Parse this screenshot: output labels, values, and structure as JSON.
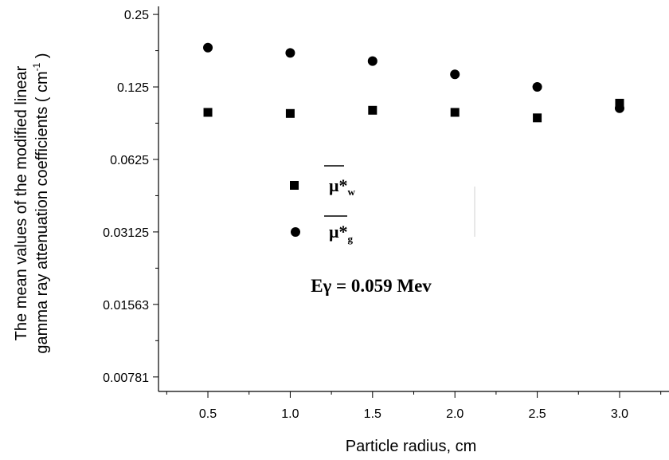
{
  "chart_data": {
    "type": "scatter",
    "xlabel": "Particle radius, cm",
    "ylabel_line1": "The mean values of the modified linear",
    "ylabel_line2": "gamma ray attenuation coefficients ( cm",
    "ylabel_sup": "-1",
    "ylabel_close": " )",
    "y_scale": "log2",
    "xlim": [
      0.2,
      3.3
    ],
    "ylim": [
      0.0068,
      0.27
    ],
    "x_ticks": [
      0.5,
      1.0,
      1.5,
      2.0,
      2.5,
      3.0
    ],
    "x_tick_labels": [
      "0.5",
      "1.0",
      "1.5",
      "2.0",
      "2.5",
      "3.0"
    ],
    "y_ticks": [
      0.25,
      0.125,
      0.0625,
      0.03125,
      0.01563,
      0.00781
    ],
    "y_tick_labels": [
      "0.25",
      "0.125",
      "0.0625",
      "0.03125",
      "0.01563",
      "0.00781"
    ],
    "series": [
      {
        "marker": "square",
        "legend_main": "μ*",
        "legend_sub": "w",
        "x": [
          0.5,
          1.0,
          1.5,
          2.0,
          2.5,
          3.0
        ],
        "y": [
          0.098,
          0.097,
          0.1,
          0.098,
          0.093,
          0.107
        ]
      },
      {
        "marker": "circle",
        "legend_main": "μ*",
        "legend_sub": "g",
        "x": [
          0.5,
          1.0,
          1.5,
          2.0,
          2.5,
          3.0
        ],
        "y": [
          0.182,
          0.173,
          0.16,
          0.141,
          0.125,
          0.102
        ]
      }
    ],
    "annotation": "Eγ = 0.059 Mev",
    "legend_position": "center-left",
    "grid": false
  }
}
